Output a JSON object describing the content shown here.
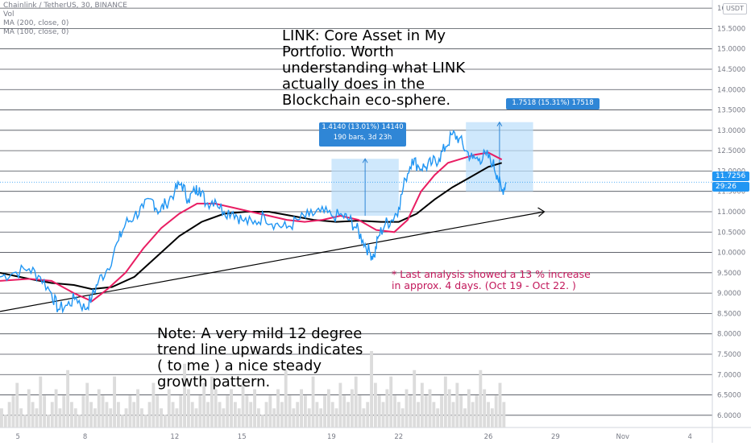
{
  "header": {
    "symbol_line": "Chainlink / TetherUS, 30, BINANCE",
    "vol_label": "Vol",
    "ma200_label": "MA (200, close, 0)",
    "ma100_label": "MA (100, close, 0)"
  },
  "currency_label": "USDT",
  "current_price": {
    "value": "11.7256",
    "countdown": "29:26"
  },
  "annotations": {
    "headline": [
      "LINK: Core Asset in My",
      "Portfolio. Worth",
      "understanding what LINK",
      "actually does in the",
      "Blockchain eco-sphere."
    ],
    "last_analysis": [
      "* Last analysis showed a 13 % increase",
      "in approx. 4 days. (Oct 19 - Oct 22. )"
    ],
    "note": [
      "Note: A very mild 12 degree",
      "trend line upwards indicates",
      "( to me ) a nice steady",
      "growth pattern."
    ]
  },
  "measure_boxes": [
    {
      "line1": "1.4140 (13.01%) 14140",
      "line2": "190 bars, 3d 23h"
    },
    {
      "line1": "1.7518 (15.31%) 17518",
      "line2": ""
    }
  ],
  "colors": {
    "price": "#2196f3",
    "ma_fast": "#e91e63",
    "ma_slow": "#000000",
    "grid": "#2a2e39",
    "measure_fill": "#bbdefb",
    "measure_label": "#2f86d6",
    "annotation_red": "#c2185b",
    "volume": "#dcdcdc"
  },
  "chart_data": {
    "type": "line",
    "title": "Chainlink / TetherUS, 30, BINANCE",
    "y_ticks": [
      "16.0000",
      "15.5000",
      "15.0000",
      "14.5000",
      "14.0000",
      "13.5000",
      "13.0000",
      "12.5000",
      "12.0000",
      "11.5000",
      "11.0000",
      "10.5000",
      "10.0000",
      "9.5000",
      "9.0000",
      "8.5000",
      "8.0000",
      "7.5000",
      "7.0000",
      "6.5000",
      "6.0000"
    ],
    "y_tick_values": [
      16.0,
      15.5,
      15.0,
      14.5,
      14.0,
      13.5,
      13.0,
      12.5,
      12.0,
      11.5,
      11.0,
      10.5,
      10.0,
      9.5,
      9.0,
      8.5,
      8.0,
      7.5,
      7.0,
      6.5,
      6.0
    ],
    "ylim": [
      5.7,
      16.2
    ],
    "x_ticks": [
      "5",
      "8",
      "12",
      "15",
      "19",
      "22",
      "26",
      "29",
      "Nov",
      "4"
    ],
    "x_tick_days": [
      5,
      8,
      12,
      15,
      19,
      22,
      26,
      29,
      32,
      35
    ],
    "xlim": [
      4.2,
      36.0
    ],
    "grid": true,
    "series": [
      {
        "role": "price",
        "x": [
          4.2,
          4.8,
          5.5,
          6.0,
          6.5,
          6.8,
          7.2,
          7.6,
          8.0,
          8.3,
          8.6,
          9.0,
          9.5,
          9.8,
          10.2,
          10.6,
          11.0,
          11.3,
          11.6,
          12.0,
          12.3,
          12.6,
          12.9,
          13.1,
          13.4,
          13.8,
          14.2,
          14.6,
          15.0,
          15.5,
          16.0,
          16.5,
          17.0,
          17.5,
          18.0,
          18.5,
          19.0,
          19.5,
          19.8,
          20.1,
          20.4,
          20.7,
          20.9,
          21.1,
          21.4,
          21.7,
          22.0,
          22.3,
          22.6,
          22.9,
          23.2,
          23.5,
          23.8,
          24.1,
          24.4,
          24.7,
          25.0,
          25.3,
          25.6,
          25.9,
          26.2,
          26.4,
          26.6,
          26.8
        ],
        "y": [
          9.4,
          9.5,
          9.6,
          9.4,
          9.0,
          8.6,
          8.7,
          8.9,
          8.6,
          8.9,
          9.3,
          9.6,
          10.3,
          10.7,
          10.9,
          11.1,
          11.3,
          11.0,
          11.2,
          11.5,
          11.7,
          11.3,
          11.5,
          11.6,
          11.2,
          11.3,
          11.0,
          11.0,
          10.8,
          10.7,
          10.9,
          10.7,
          10.6,
          10.8,
          10.9,
          11.0,
          10.9,
          10.9,
          10.8,
          10.6,
          10.3,
          10.0,
          9.9,
          10.4,
          10.7,
          10.8,
          11.1,
          11.8,
          12.3,
          12.1,
          12.1,
          12.2,
          12.3,
          12.6,
          12.9,
          12.8,
          12.5,
          12.3,
          12.3,
          12.4,
          12.2,
          11.9,
          11.5,
          11.72
        ]
      },
      {
        "role": "ma_fast",
        "x": [
          4.2,
          5.5,
          6.5,
          7.5,
          8.3,
          9.0,
          9.8,
          10.6,
          11.4,
          12.2,
          13.0,
          13.8,
          14.6,
          15.4,
          16.2,
          17.0,
          17.8,
          18.6,
          19.4,
          20.2,
          21.0,
          21.8,
          22.4,
          23.0,
          23.6,
          24.2,
          24.8,
          25.4,
          26.0,
          26.6
        ],
        "y": [
          9.3,
          9.35,
          9.3,
          9.0,
          8.8,
          9.1,
          9.5,
          10.1,
          10.6,
          10.95,
          11.2,
          11.2,
          11.1,
          11.0,
          10.9,
          10.8,
          10.75,
          10.8,
          10.9,
          10.8,
          10.55,
          10.5,
          10.8,
          11.5,
          11.9,
          12.2,
          12.3,
          12.4,
          12.45,
          12.28
        ]
      },
      {
        "role": "ma_slow",
        "x": [
          4.2,
          5.5,
          6.5,
          7.5,
          8.3,
          9.2,
          10.2,
          11.2,
          12.2,
          13.2,
          14.2,
          15.2,
          16.2,
          17.2,
          18.2,
          19.2,
          20.2,
          21.2,
          22.0,
          22.8,
          23.6,
          24.4,
          25.2,
          26.0,
          26.6
        ],
        "y": [
          9.5,
          9.35,
          9.25,
          9.2,
          9.1,
          9.15,
          9.4,
          9.9,
          10.4,
          10.75,
          10.95,
          11.0,
          11.0,
          10.9,
          10.8,
          10.75,
          10.78,
          10.75,
          10.75,
          10.95,
          11.3,
          11.6,
          11.85,
          12.1,
          12.2
        ]
      },
      {
        "role": "trend",
        "x": [
          4.2,
          24.5,
          28.5
        ],
        "y": [
          8.55,
          10.6,
          11.0
        ]
      }
    ],
    "measure_ranges": [
      {
        "x_start": 19.0,
        "x_end": 22.0,
        "y_start": 10.9,
        "y_end": 12.3
      },
      {
        "x_start": 25.0,
        "x_end": 28.0,
        "y_start": 11.5,
        "y_end": 13.2
      }
    ],
    "volume": {
      "x_start": 4.2,
      "x_end": 26.8,
      "bars": [
        3,
        2,
        4,
        5,
        7,
        3,
        2,
        6,
        4,
        3,
        8,
        5,
        2,
        4,
        6,
        3,
        5,
        9,
        4,
        3,
        2,
        5,
        7,
        4,
        3,
        6,
        5,
        4,
        3,
        8,
        4,
        2,
        3,
        5,
        4,
        6,
        3,
        2,
        4,
        7,
        5,
        3,
        2,
        6,
        4,
        3,
        5,
        10,
        6,
        4,
        3,
        5,
        7,
        4,
        8,
        6,
        4,
        3,
        5,
        6,
        4,
        3,
        7,
        5,
        4,
        6,
        3,
        2,
        4,
        5,
        3,
        6,
        4,
        9,
        5,
        3,
        4,
        6,
        5,
        3,
        8,
        4,
        3,
        5,
        6,
        4,
        3,
        7,
        5,
        4,
        6,
        8,
        5,
        3,
        4,
        12,
        7,
        5,
        4,
        6,
        8,
        5,
        4,
        3,
        6,
        5,
        9,
        4,
        7,
        5,
        6,
        4,
        3,
        5,
        8,
        6,
        4,
        7,
        5,
        3,
        6,
        4,
        5,
        9,
        6,
        4,
        3,
        5,
        7,
        4
      ]
    }
  }
}
